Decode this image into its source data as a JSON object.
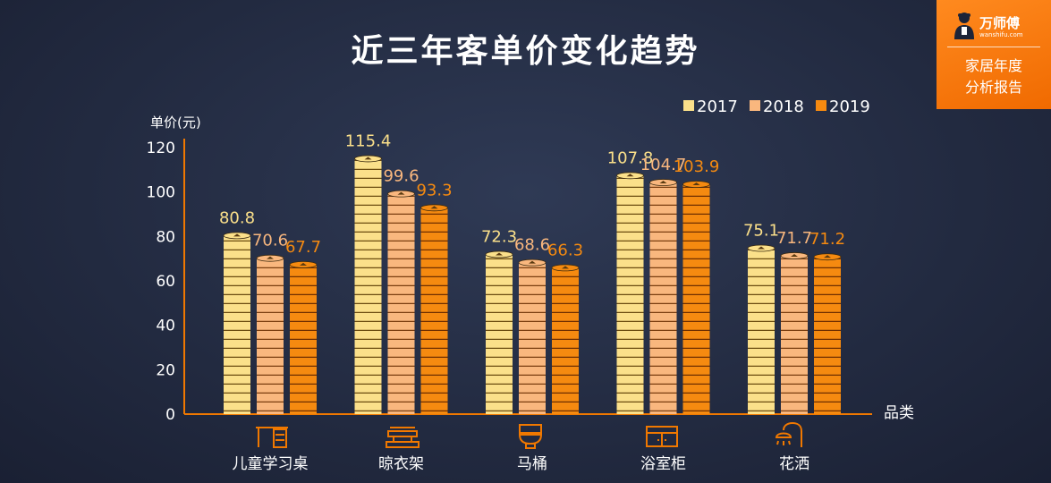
{
  "title": "近三年客单价变化趋势",
  "brand": {
    "name": "万师傅",
    "url": "wanshifu.com",
    "subtitle_line1": "家居年度",
    "subtitle_line2": "分析报告"
  },
  "colors": {
    "accent": "#f07800",
    "axis": "#f07800"
  },
  "chart_data": {
    "type": "bar",
    "title": "近三年客单价变化趋势",
    "ylabel": "单价(元)",
    "xlabel": "品类",
    "ylim": [
      0,
      120
    ],
    "yticks": [
      0,
      20,
      40,
      60,
      80,
      100,
      120
    ],
    "categories": [
      "儿童学习桌",
      "晾衣架",
      "马桶",
      "浴室柜",
      "花洒"
    ],
    "category_icons": [
      "desk-icon",
      "clothes-rack-icon",
      "toilet-icon",
      "cabinet-icon",
      "shower-icon"
    ],
    "series": [
      {
        "name": "2017",
        "color": "#fbe08a",
        "values": [
          80.8,
          115.4,
          72.3,
          107.8,
          75.1
        ]
      },
      {
        "name": "2018",
        "color": "#f9b77e",
        "values": [
          70.6,
          99.6,
          68.6,
          104.7,
          71.7
        ]
      },
      {
        "name": "2019",
        "color": "#f58a10",
        "values": [
          67.7,
          93.3,
          66.3,
          103.9,
          71.2
        ]
      }
    ],
    "legend_position": "top-right",
    "grid": false
  }
}
